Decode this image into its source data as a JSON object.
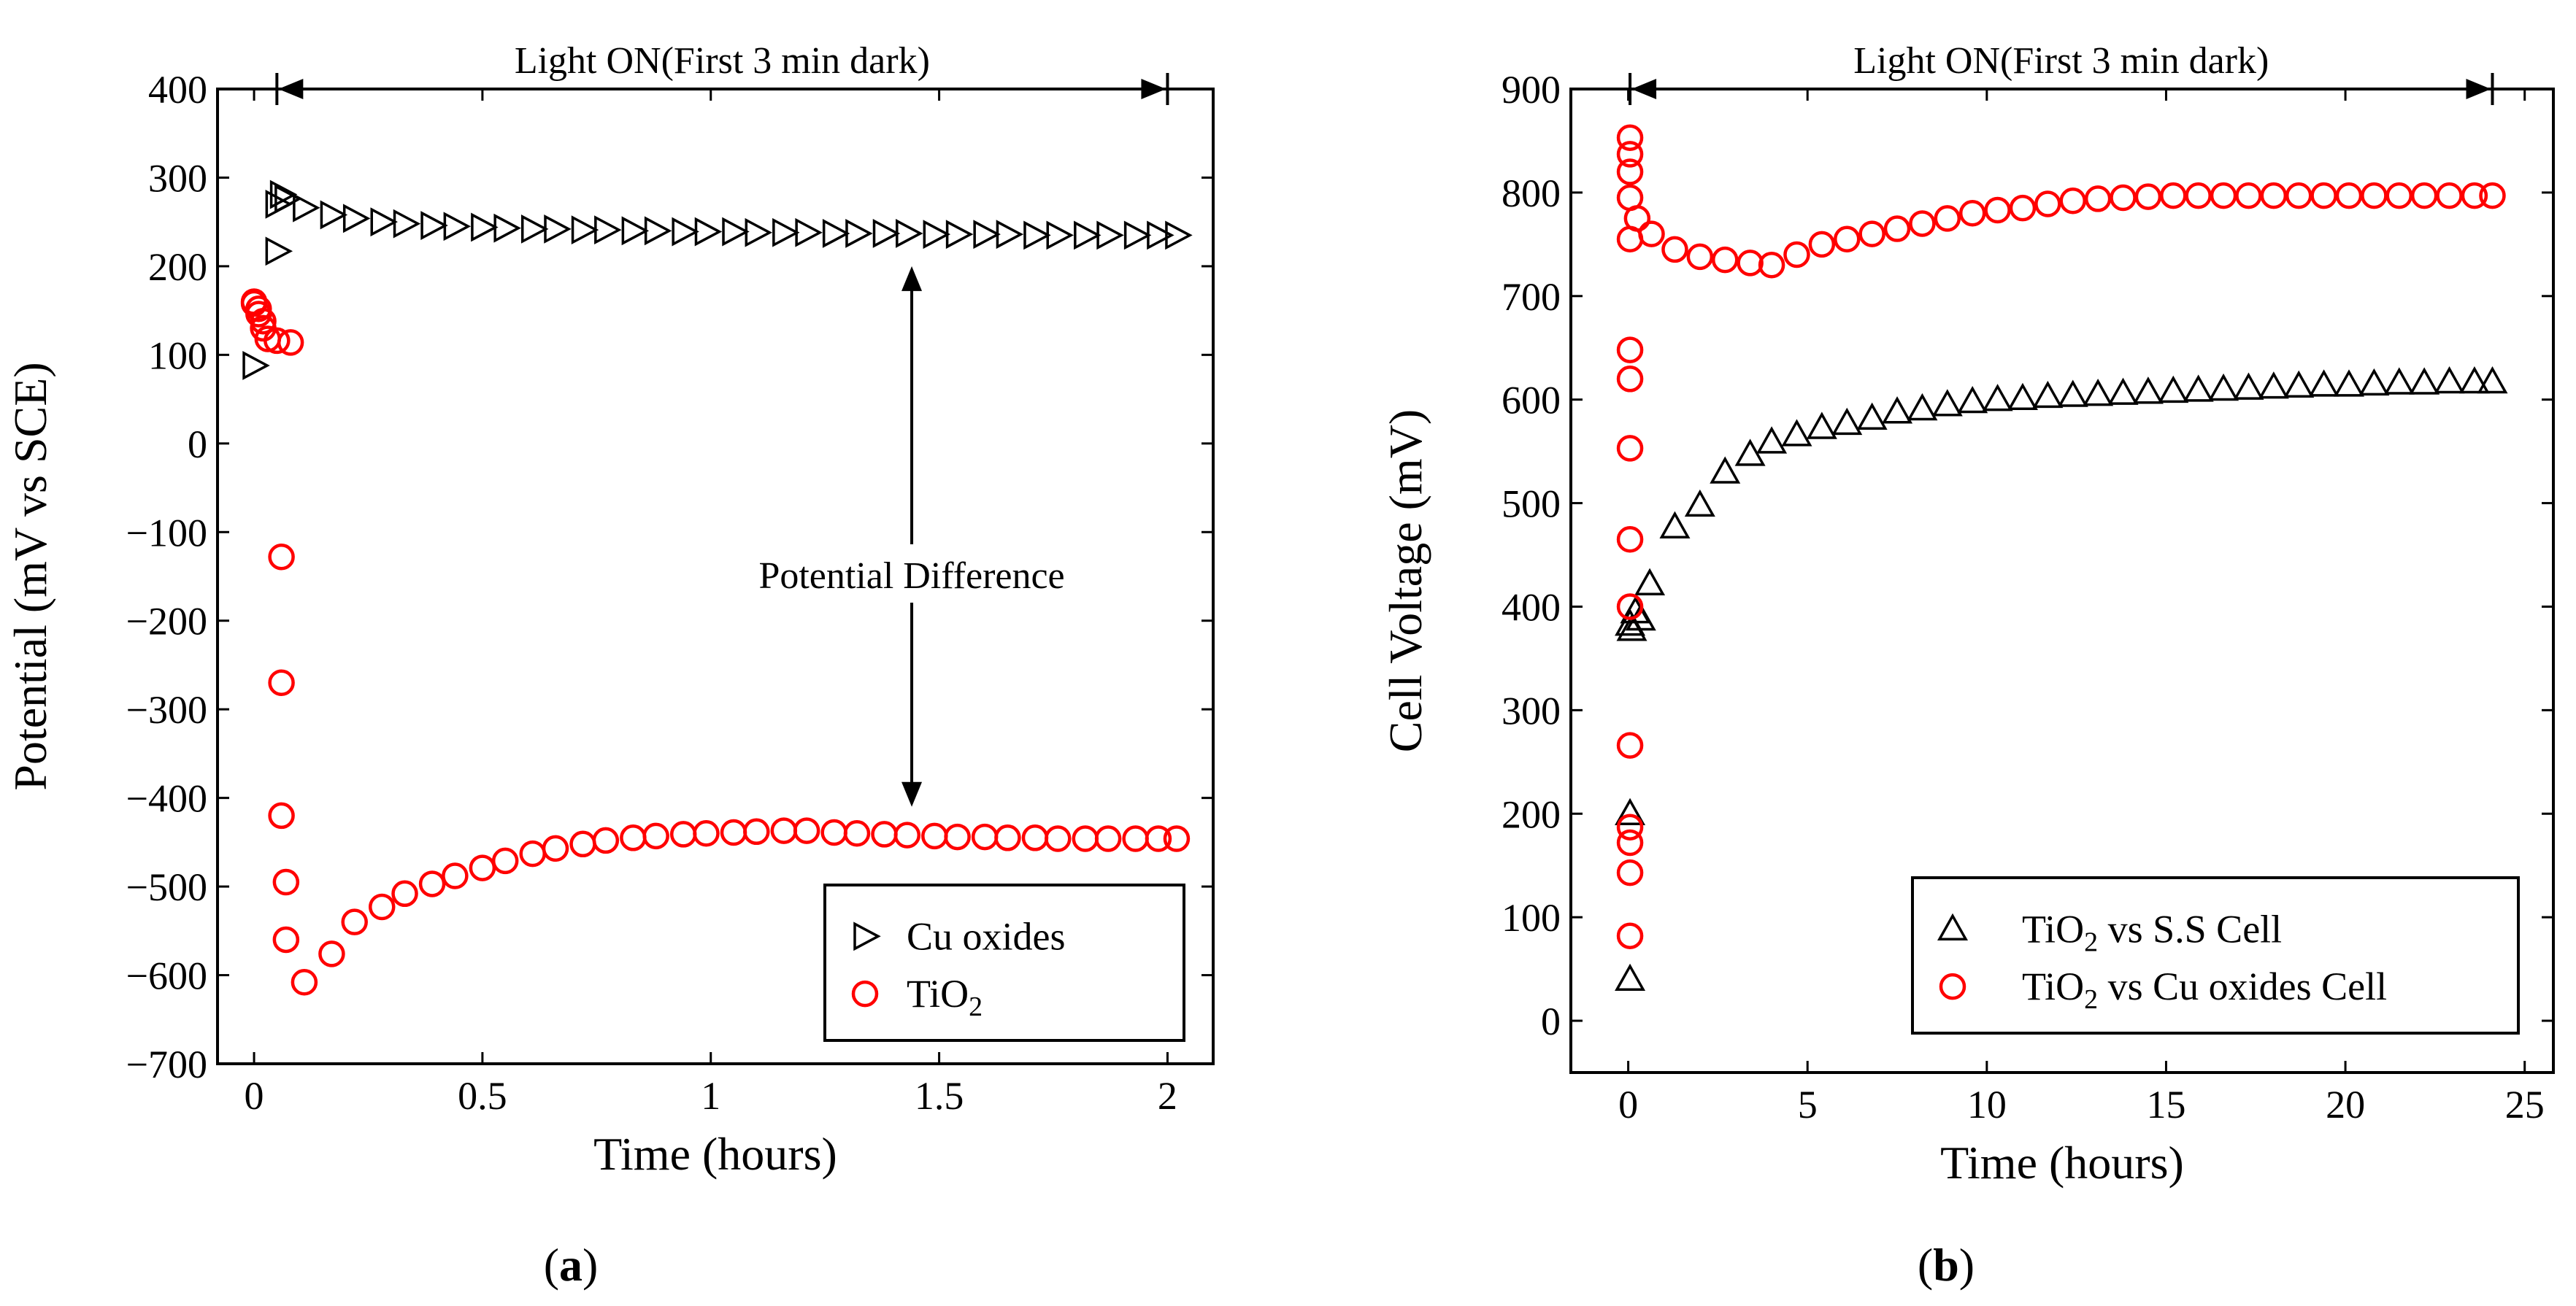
{
  "chart_data": [
    {
      "type": "scatter",
      "panel": "(a)",
      "caption_letter": "a",
      "xlabel": "Time (hours)",
      "ylabel": "Potential (mV vs SCE)",
      "xlim": [
        -0.08,
        2.1
      ],
      "ylim": [
        -700,
        400
      ],
      "xticks": [
        0,
        0.5,
        1,
        1.5,
        2
      ],
      "xtick_labels": [
        "0",
        "0.5",
        "1",
        "1.5",
        "2"
      ],
      "yticks": [
        -700,
        -600,
        -500,
        -400,
        -300,
        -200,
        -100,
        0,
        100,
        200,
        300,
        400
      ],
      "ytick_labels": [
        "−700",
        "−600",
        "−500",
        "−400",
        "−300",
        "−200",
        "−100",
        "0",
        "100",
        "200",
        "300",
        "400"
      ],
      "top_annotation": {
        "text": "Light ON(First 3 min dark)",
        "x_start": 0.05,
        "x_end": 2.0
      },
      "diff_annotation": {
        "text": "Potential Difference",
        "x": 1.44,
        "y_top": 200,
        "y_bottom": -410,
        "y_text": -150
      },
      "legend": {
        "position": "bottom-right",
        "entries": [
          "Cu oxides",
          "TiO₂"
        ]
      },
      "series": [
        {
          "name": "Cu oxides",
          "marker": "triangle-right",
          "color": "#000000",
          "x": [
            0,
            0.05,
            0.05,
            0.06,
            0.07,
            0.11,
            0.17,
            0.22,
            0.28,
            0.33,
            0.39,
            0.44,
            0.5,
            0.55,
            0.61,
            0.66,
            0.72,
            0.77,
            0.83,
            0.88,
            0.94,
            0.99,
            1.05,
            1.1,
            1.16,
            1.21,
            1.27,
            1.32,
            1.38,
            1.43,
            1.49,
            1.54,
            1.6,
            1.65,
            1.71,
            1.76,
            1.82,
            1.87,
            1.93,
            1.98,
            2.02
          ],
          "y": [
            88,
            217,
            270,
            281,
            276,
            266,
            258,
            254,
            250,
            248,
            246,
            245,
            244,
            243,
            242,
            242,
            241,
            241,
            240,
            240,
            239,
            239,
            239,
            238,
            238,
            238,
            237,
            237,
            237,
            237,
            236,
            236,
            236,
            236,
            235,
            235,
            235,
            235,
            235,
            235,
            235
          ]
        },
        {
          "name": "TiO₂",
          "marker": "circle",
          "color": "#ff0000",
          "x": [
            0.0,
            0.0,
            0.01,
            0.01,
            0.02,
            0.02,
            0.03,
            0.05,
            0.06,
            0.06,
            0.06,
            0.07,
            0.07,
            0.08,
            0.11,
            0.17,
            0.22,
            0.28,
            0.33,
            0.39,
            0.44,
            0.5,
            0.55,
            0.61,
            0.66,
            0.72,
            0.77,
            0.83,
            0.88,
            0.94,
            0.99,
            1.05,
            1.1,
            1.16,
            1.21,
            1.27,
            1.32,
            1.38,
            1.43,
            1.49,
            1.54,
            1.6,
            1.65,
            1.71,
            1.76,
            1.82,
            1.87,
            1.93,
            1.98,
            2.02
          ],
          "y": [
            160,
            158,
            152,
            146,
            138,
            130,
            118,
            116,
            -128,
            -270,
            -420,
            -495,
            -560,
            114,
            -608,
            -576,
            -540,
            -523,
            -508,
            -497,
            -488,
            -479,
            -471,
            -463,
            -457,
            -452,
            -448,
            -445,
            -443,
            -441,
            -440,
            -439,
            -438,
            -437,
            -437,
            -439,
            -440,
            -441,
            -442,
            -443,
            -444,
            -444,
            -445,
            -445,
            -446,
            -446,
            -446,
            -446,
            -446,
            -446
          ]
        }
      ]
    },
    {
      "type": "scatter",
      "panel": "(b)",
      "caption_letter": "b",
      "xlabel": "Time (hours)",
      "ylabel": "Cell Voltage (mV)",
      "xlim": [
        -1.6,
        25.8
      ],
      "ylim": [
        -50,
        900
      ],
      "xticks": [
        0,
        5,
        10,
        15,
        20,
        25
      ],
      "xtick_labels": [
        "0",
        "5",
        "10",
        "15",
        "20",
        "25"
      ],
      "yticks": [
        0,
        100,
        200,
        300,
        400,
        500,
        600,
        700,
        800,
        900
      ],
      "ytick_labels": [
        "0",
        "100",
        "200",
        "300",
        "400",
        "500",
        "600",
        "700",
        "800",
        "900"
      ],
      "top_annotation": {
        "text": "Light ON(First 3 min dark)",
        "x_start": 0.05,
        "x_end": 24.1
      },
      "legend": {
        "position": "bottom-right",
        "entries": [
          "TiO₂ vs S.S Cell",
          "TiO₂ vs Cu oxides Cell"
        ]
      },
      "series": [
        {
          "name": "TiO₂ vs S.S Cell",
          "marker": "triangle-up",
          "color": "#000000",
          "x": [
            0.05,
            0.05,
            0.05,
            0.1,
            0.2,
            0.35,
            0.6,
            1.3,
            2.0,
            2.7,
            3.4,
            4.0,
            4.7,
            5.4,
            6.1,
            6.8,
            7.5,
            8.2,
            8.9,
            9.6,
            10.3,
            11.0,
            11.7,
            12.4,
            13.1,
            13.8,
            14.5,
            15.2,
            15.9,
            16.6,
            17.3,
            18.0,
            18.7,
            19.4,
            20.1,
            20.8,
            21.5,
            22.2,
            22.9,
            23.6,
            24.1
          ],
          "y": [
            40,
            200,
            383,
            378,
            395,
            388,
            422,
            477,
            498,
            530,
            547,
            559,
            566,
            573,
            577,
            582,
            588,
            591,
            595,
            598,
            600,
            601,
            603,
            604,
            605,
            606,
            607,
            608,
            609,
            610,
            611,
            612,
            613,
            614,
            614,
            615,
            616,
            616,
            617,
            617,
            617
          ]
        },
        {
          "name": "TiO₂ vs Cu oxides Cell",
          "marker": "circle",
          "color": "#ff0000",
          "x": [
            0.05,
            0.05,
            0.05,
            0.05,
            0.05,
            0.05,
            0.05,
            0.05,
            0.05,
            0.05,
            0.05,
            0.05,
            0.05,
            0.05,
            0.05,
            0.25,
            0.65,
            1.3,
            2.0,
            2.7,
            3.4,
            4.0,
            4.7,
            5.4,
            6.1,
            6.8,
            7.5,
            8.2,
            8.9,
            9.6,
            10.3,
            11.0,
            11.7,
            12.4,
            13.1,
            13.8,
            14.5,
            15.2,
            15.9,
            16.6,
            17.3,
            18.0,
            18.7,
            19.4,
            20.1,
            20.8,
            21.5,
            22.2,
            22.9,
            23.6,
            24.1
          ],
          "y": [
            82,
            143,
            172,
            187,
            266,
            400,
            465,
            553,
            620,
            648,
            755,
            795,
            820,
            837,
            853,
            775,
            760,
            745,
            738,
            735,
            732,
            730,
            740,
            750,
            755,
            760,
            765,
            770,
            775,
            780,
            783,
            785,
            789,
            792,
            794,
            795,
            796,
            797,
            797,
            797,
            797,
            797,
            797,
            797,
            797,
            797,
            797,
            797,
            797,
            797,
            797
          ]
        }
      ]
    }
  ]
}
